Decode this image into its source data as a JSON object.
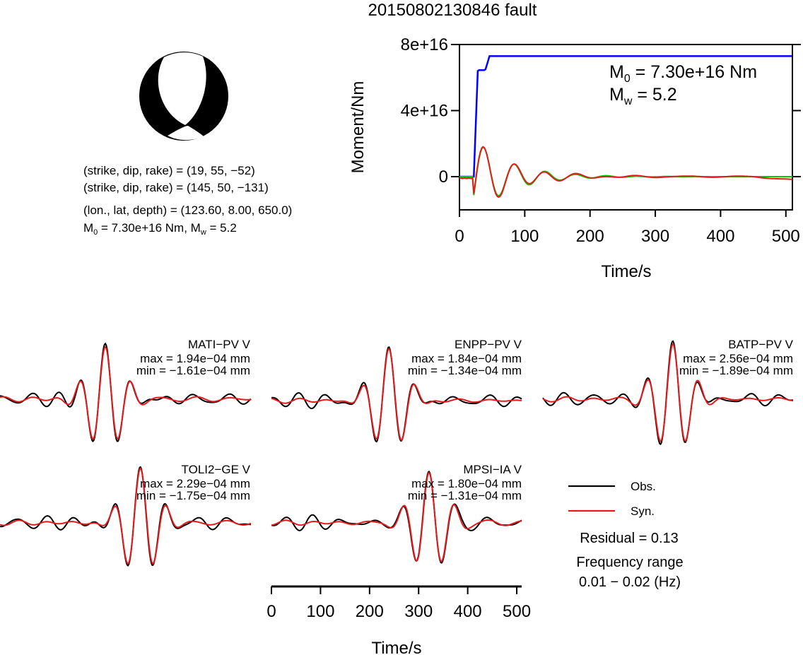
{
  "title": "20150802130846 fault",
  "info": {
    "line1": "(strike, dip, rake) = (19, 55, −52)",
    "line2": "(strike, dip, rake) = (145, 50, −131)",
    "line3": "(lon., lat, depth) = (123.60, 8.00, 650.0)",
    "line4_m": "M",
    "line4_sub": "0",
    "line4_rest": " = 7.30e+16 Nm, M",
    "line4_sub2": "w",
    "line4_end": " = 5.2"
  },
  "moment_plot": {
    "ylabel": "Moment/Nm",
    "xlabel": "Time/s",
    "m0_prefix": "M",
    "m0_sub": "0",
    "m0_text": " = 7.30e+16 Nm",
    "mw_prefix": "M",
    "mw_sub": "w",
    "mw_text": " = 5.2",
    "yticks": [
      "8e+16",
      "4e+16",
      "0"
    ],
    "xticks": [
      "0",
      "100",
      "200",
      "300",
      "400",
      "500"
    ]
  },
  "legend": {
    "obs": "Obs.",
    "syn": "Syn.",
    "residual": "Residual = 0.13",
    "freq_label": "Frequency range",
    "freq_value": "0.01 − 0.02 (Hz)"
  },
  "waveform_axis": {
    "xlabel": "Time/s",
    "xticks": [
      "0",
      "100",
      "200",
      "300",
      "400",
      "500"
    ]
  },
  "stations": [
    {
      "name": "MATI−PV V",
      "max": "max = 1.94e−04 mm",
      "min": "min = −1.61e−04 mm"
    },
    {
      "name": "ENPP−PV V",
      "max": "max = 1.84e−04 mm",
      "min": "min = −1.34e−04 mm"
    },
    {
      "name": "BATP−PV V",
      "max": "max = 2.56e−04 mm",
      "min": "min = −1.89e−04 mm"
    },
    {
      "name": "TOLI2−GE V",
      "max": "max = 2.29e−04 mm",
      "min": "min = −1.75e−04 mm"
    },
    {
      "name": "MPSI−IA V",
      "max": "max = 1.80e−04 mm",
      "min": "min = −1.31e−04 mm"
    }
  ],
  "colors": {
    "obs": "#000000",
    "syn": "#e41a1c",
    "moment": "#0000ff",
    "fit": "#00cc00"
  },
  "chart_data": [
    {
      "type": "line",
      "xlabel": "Time/s",
      "ylabel": "Moment/Nm",
      "xlim": [
        0,
        510
      ],
      "ylim": [
        -2e+16,
        8e+16
      ],
      "series": [
        {
          "x": [
            0,
            22,
            28,
            30,
            38,
            40,
            46,
            48,
            510
          ],
          "y": [
            0,
            0,
            6.4e+16,
            6.45e+16,
            6.45e+16,
            6.5e+16,
            7.3e+16,
            7.3e+16,
            7.3e+16
          ]
        }
      ]
    },
    {
      "type": "line",
      "xlabel": "Time/s",
      "xlim": [
        0,
        510
      ],
      "series": [
        {
          "name": "Obs."
        },
        {
          "name": "Syn."
        }
      ]
    }
  ]
}
